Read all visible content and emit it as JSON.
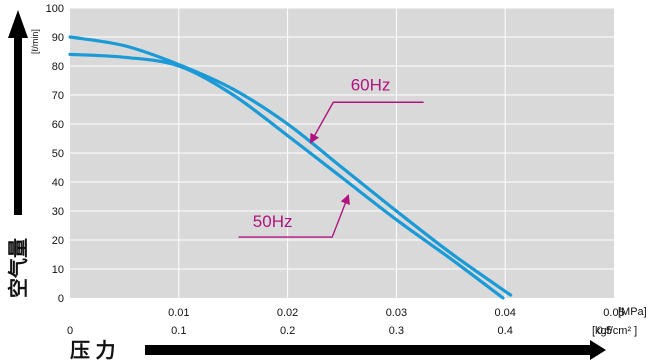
{
  "chart_data": {
    "type": "line",
    "y_title": "空气量",
    "y_unit": "[ℓ/min]",
    "x_title": "压 力",
    "x_unit_mpa": "[MPa]",
    "x_unit_kgf": "[kgf/cm² ]",
    "ylim": [
      0,
      100
    ],
    "xlim": [
      0,
      0.05
    ],
    "grid": true,
    "y_ticks": [
      "0",
      "10",
      "20",
      "30",
      "40",
      "50",
      "60",
      "70",
      "80",
      "90",
      "100"
    ],
    "x_ticks_mpa": [
      "0.01",
      "0.02",
      "0.03",
      "0.04",
      "0.05"
    ],
    "x_ticks_kgf": [
      "0",
      "0.1",
      "0.2",
      "0.3",
      "0.4",
      "0.5"
    ],
    "series": [
      {
        "name": "60Hz",
        "color": "#1a9ad6",
        "points": [
          [
            0,
            90
          ],
          [
            0.005,
            87
          ],
          [
            0.01,
            80.5
          ],
          [
            0.015,
            72
          ],
          [
            0.02,
            60
          ],
          [
            0.025,
            45
          ],
          [
            0.03,
            30
          ],
          [
            0.035,
            15.5
          ],
          [
            0.0405,
            1
          ]
        ]
      },
      {
        "name": "50Hz",
        "color": "#1a9ad6",
        "points": [
          [
            0,
            84
          ],
          [
            0.005,
            83
          ],
          [
            0.01,
            80
          ],
          [
            0.015,
            70
          ],
          [
            0.02,
            56
          ],
          [
            0.025,
            41.5
          ],
          [
            0.03,
            27
          ],
          [
            0.035,
            13.5
          ],
          [
            0.0398,
            0
          ]
        ]
      }
    ],
    "annotation_color": "#b0157f"
  }
}
